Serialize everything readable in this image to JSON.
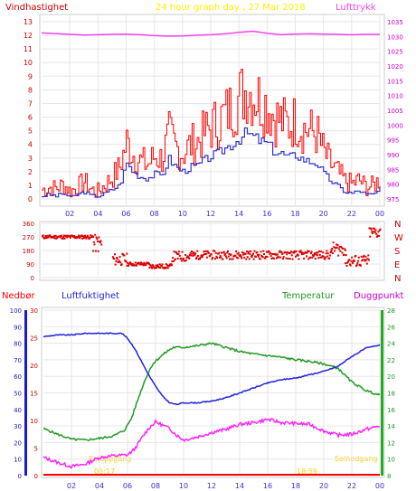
{
  "header": {
    "left_label": "Vindhastighet",
    "title": "24 hour graph day , 27 Mar 2018",
    "right_label": "Lufttrykk"
  },
  "colors": {
    "wind": "#ff0000",
    "wind_avg": "#3333cc",
    "pressure": "#ee44ee",
    "direction": "#dd0000",
    "humidity": "#2222dd",
    "temperature": "#229922",
    "dewpoint": "#ff22ff",
    "rain": "#ff0000",
    "sun_text": "#ffee00"
  },
  "x_ticks": [
    "02",
    "04",
    "06",
    "08",
    "10",
    "12",
    "14",
    "16",
    "18",
    "20",
    "22",
    "00"
  ],
  "chart_data": [
    {
      "type": "line",
      "name": "wind-pressure",
      "y_left": {
        "label": "Vindhastighet",
        "ticks": [
          "0",
          "1",
          "2",
          "3",
          "4",
          "5",
          "6",
          "7",
          "8",
          "9",
          "10",
          "11",
          "12",
          "13"
        ],
        "range": [
          0,
          13
        ]
      },
      "y_right": {
        "label": "Lufttrykk",
        "ticks": [
          "975",
          "980",
          "985",
          "990",
          "995",
          "1000",
          "1005",
          "1010",
          "1015",
          "1020",
          "1025",
          "1030",
          "1035"
        ],
        "range": [
          975,
          1035
        ]
      },
      "x_range_hours": [
        0,
        24
      ],
      "grid": true,
      "series": [
        {
          "key": "gust",
          "axis": "left",
          "x": [
            0,
            0.5,
            1,
            1.5,
            2,
            2.5,
            3,
            3.5,
            4,
            4.5,
            5,
            5.5,
            6,
            6.5,
            7,
            7.5,
            8,
            8.5,
            9,
            9.5,
            10,
            10.5,
            11,
            11.5,
            12,
            12.5,
            13,
            13.5,
            14,
            14.5,
            15,
            15.5,
            16,
            16.5,
            17,
            17.5,
            18,
            18.5,
            19,
            19.5,
            20,
            20.5,
            21,
            21.5,
            22,
            22.5,
            23,
            23.5,
            24
          ],
          "values": [
            0.6,
            0.8,
            0.7,
            1.0,
            0.5,
            0.8,
            1.2,
            0.6,
            0.5,
            1.0,
            1.5,
            2.2,
            4.0,
            3.1,
            2.6,
            2.4,
            3.0,
            2.8,
            4.5,
            3.6,
            3.2,
            3.8,
            4.0,
            4.6,
            5.1,
            5.4,
            6.0,
            6.5,
            7.2,
            7.8,
            7.4,
            7.0,
            6.6,
            5.8,
            5.5,
            5.2,
            5.6,
            5.0,
            4.8,
            4.6,
            3.2,
            2.4,
            1.8,
            1.2,
            1.0,
            1.3,
            0.8,
            0.9,
            1.4
          ]
        },
        {
          "key": "mean",
          "axis": "left",
          "x": [
            0,
            0.5,
            1,
            1.5,
            2,
            2.5,
            3,
            3.5,
            4,
            4.5,
            5,
            5.5,
            6,
            6.5,
            7,
            7.5,
            8,
            8.5,
            9,
            9.5,
            10,
            10.5,
            11,
            11.5,
            12,
            12.5,
            13,
            13.5,
            14,
            14.5,
            15,
            15.5,
            16,
            16.5,
            17,
            17.5,
            18,
            18.5,
            19,
            19.5,
            20,
            20.5,
            21,
            21.5,
            22,
            22.5,
            23,
            23.5,
            24
          ],
          "values": [
            0.2,
            0.3,
            0.2,
            0.4,
            0.1,
            0.3,
            0.5,
            0.2,
            0.2,
            0.4,
            0.7,
            1.0,
            2.6,
            1.9,
            1.6,
            1.5,
            1.8,
            1.7,
            2.9,
            2.3,
            2.0,
            2.3,
            2.4,
            2.8,
            3.1,
            3.3,
            3.7,
            4.0,
            4.4,
            4.8,
            4.5,
            4.2,
            4.0,
            3.4,
            3.3,
            3.0,
            3.2,
            2.9,
            2.7,
            2.6,
            1.8,
            1.3,
            0.9,
            0.5,
            0.4,
            0.6,
            0.3,
            0.3,
            0.7
          ]
        },
        {
          "key": "pressure",
          "axis": "right",
          "x": [
            0,
            1,
            2,
            3,
            4,
            5,
            6,
            7,
            8,
            9,
            10,
            11,
            12,
            13,
            14,
            15,
            16,
            17,
            18,
            19,
            20,
            21,
            22,
            23,
            24
          ],
          "values": [
            1031.2,
            1031.0,
            1030.7,
            1030.5,
            1030.6,
            1030.7,
            1030.8,
            1030.6,
            1030.3,
            1030.1,
            1030.2,
            1030.4,
            1030.6,
            1030.9,
            1031.4,
            1031.8,
            1031.1,
            1030.6,
            1030.8,
            1030.9,
            1030.8,
            1030.7,
            1030.6,
            1030.7,
            1030.7
          ]
        }
      ]
    },
    {
      "type": "scatter",
      "name": "wind-direction",
      "y_left": {
        "ticks": [
          "0",
          "90",
          "180",
          "270",
          "360"
        ],
        "range": [
          0,
          360
        ]
      },
      "y_right": {
        "ticks": [
          "N",
          "E",
          "S",
          "W",
          "N"
        ]
      },
      "x_range_hours": [
        0,
        24
      ],
      "grid": true,
      "clusters": [
        {
          "x_from": 0.0,
          "x_to": 3.6,
          "center": 270,
          "spread": 12
        },
        {
          "x_from": 3.6,
          "x_to": 4.2,
          "center": 225,
          "spread": 60
        },
        {
          "x_from": 5.0,
          "x_to": 6.0,
          "center": 120,
          "spread": 40
        },
        {
          "x_from": 6.0,
          "x_to": 7.6,
          "center": 90,
          "spread": 12
        },
        {
          "x_from": 7.6,
          "x_to": 9.2,
          "center": 75,
          "spread": 15
        },
        {
          "x_from": 9.2,
          "x_to": 10.5,
          "center": 140,
          "spread": 35
        },
        {
          "x_from": 10.5,
          "x_to": 20.5,
          "center": 150,
          "spread": 28
        },
        {
          "x_from": 20.5,
          "x_to": 21.5,
          "center": 190,
          "spread": 45
        },
        {
          "x_from": 21.5,
          "x_to": 23.2,
          "center": 110,
          "spread": 40
        },
        {
          "x_from": 23.2,
          "x_to": 24.0,
          "center": 300,
          "spread": 40
        }
      ]
    },
    {
      "type": "line",
      "name": "humidity-temperature",
      "labels": {
        "rain": "Nedbør",
        "humidity": "Luftfuktighet",
        "temperature": "Temperatur",
        "dewpoint": "Duggpunkt"
      },
      "y_rain": {
        "ticks": [
          "0",
          "10",
          "20",
          "30",
          "40",
          "50",
          "60",
          "70",
          "80",
          "90",
          "100"
        ],
        "range": [
          0,
          100
        ]
      },
      "y_humidity": {
        "ticks": [
          "0",
          "5",
          "10",
          "15",
          "20",
          "25",
          "30"
        ],
        "range": [
          0,
          30
        ]
      },
      "y_right": {
        "ticks": [
          "8",
          "10",
          "12",
          "14",
          "16",
          "18",
          "20",
          "22",
          "24",
          "26",
          "28"
        ],
        "range": [
          8,
          28
        ]
      },
      "annotations": [
        "Soloppgang",
        "Solnedgang",
        "06:17",
        "18:59"
      ],
      "x_range_hours": [
        0,
        24
      ],
      "grid": true,
      "series": [
        {
          "key": "humidity",
          "axis": "left",
          "x": [
            0,
            1,
            2,
            3,
            4,
            5,
            5.6,
            6,
            6.5,
            7,
            7.5,
            8,
            8.5,
            9,
            9.5,
            10,
            11,
            12,
            13,
            14,
            15,
            16,
            17,
            18,
            19,
            20,
            21,
            22,
            23,
            24
          ],
          "values": [
            84,
            85,
            85,
            86,
            86,
            86,
            86,
            83,
            77,
            69,
            61,
            54,
            48,
            44,
            43,
            44,
            44,
            45,
            47,
            50,
            53,
            56,
            58,
            59,
            61,
            63,
            66,
            72,
            77,
            79
          ]
        },
        {
          "key": "temperature",
          "axis": "right",
          "x": [
            0,
            1,
            2,
            3,
            4,
            5,
            5.8,
            6.3,
            6.8,
            7.3,
            7.8,
            8.3,
            8.8,
            9.3,
            10,
            11,
            12,
            13,
            14,
            15,
            16,
            17,
            18,
            19,
            20,
            21,
            22,
            23,
            24
          ],
          "values": [
            13.7,
            13.0,
            12.4,
            12.3,
            12.5,
            12.8,
            13.5,
            15.0,
            17.5,
            19.8,
            21.5,
            22.3,
            23.0,
            23.5,
            23.5,
            23.7,
            24.0,
            23.5,
            23.0,
            22.7,
            22.5,
            22.3,
            22.0,
            21.8,
            21.5,
            21.0,
            19.3,
            18.3,
            17.7
          ]
        },
        {
          "key": "dewpoint",
          "axis": "right",
          "x": [
            0,
            1,
            2,
            3,
            4,
            5,
            6,
            6.5,
            7,
            7.5,
            8,
            8.5,
            9,
            9.5,
            10,
            11,
            12,
            13,
            14,
            15,
            16,
            17,
            18,
            19,
            20,
            21,
            22,
            23,
            24
          ],
          "values": [
            10.2,
            9.6,
            9.1,
            9.4,
            10.2,
            10.4,
            10.5,
            11.2,
            12.5,
            13.7,
            14.5,
            14.1,
            13.7,
            12.9,
            12.3,
            12.7,
            13.2,
            13.6,
            14.2,
            14.4,
            14.8,
            14.4,
            14.3,
            14.2,
            13.4,
            12.9,
            13.0,
            13.6,
            14.0
          ]
        },
        {
          "key": "rain",
          "axis": "rain",
          "x": [
            0,
            24
          ],
          "values": [
            0,
            0
          ]
        }
      ]
    }
  ]
}
